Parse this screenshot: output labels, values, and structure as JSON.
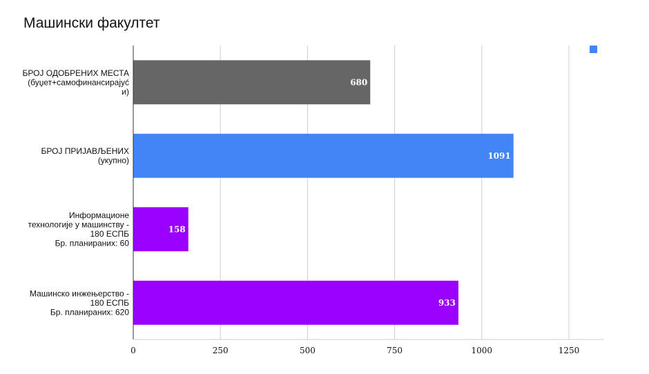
{
  "chart_data": {
    "type": "bar",
    "orientation": "horizontal",
    "title": "Машински факултет",
    "xlabel": "",
    "ylabel": "",
    "xlim": [
      0,
      1350
    ],
    "xticks": [
      "0",
      "250",
      "500",
      "750",
      "1000",
      "1250"
    ],
    "xtick_values": [
      0,
      250,
      500,
      750,
      1000,
      1250
    ],
    "grid": true,
    "legend": {
      "position": "top-right",
      "entries": [
        {
          "name": "",
          "color": "#4285f4"
        }
      ]
    },
    "bars": [
      {
        "label_lines": [
          "БРОЈ ОДОБРЕНИХ МЕСТА",
          "(буџет+самофинансирајуć",
          "и)"
        ],
        "value": 680,
        "value_label": "680",
        "color": "#666666"
      },
      {
        "label_lines": [
          "БРОЈ ПРИЈАВЉЕНИХ",
          "(укупно)"
        ],
        "value": 1091,
        "value_label": "1091",
        "color": "#4285f4"
      },
      {
        "label_lines": [
          "Информационе",
          "технологије у машинству -",
          "180 ЕСПБ",
          "Бр. планираних: 60"
        ],
        "value": 158,
        "value_label": "158",
        "color": "#9900ff"
      },
      {
        "label_lines": [
          "Машинско инжењерство -",
          "180 ЕСПБ",
          "Бр. планираних: 620"
        ],
        "value": 933,
        "value_label": "933",
        "color": "#9900ff"
      }
    ]
  }
}
